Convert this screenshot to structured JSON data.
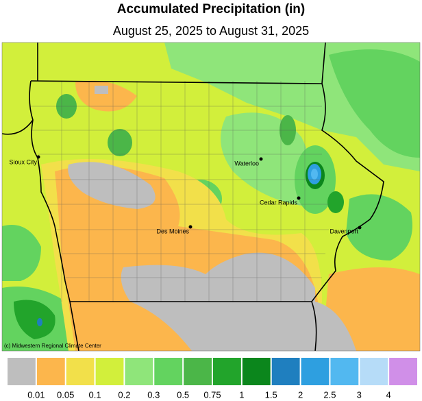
{
  "header": {
    "title": "Accumulated Precipitation (in)",
    "subtitle": "August 25, 2025 to August 31, 2025"
  },
  "map": {
    "cities": [
      "Sioux City",
      "Waterloo",
      "Cedar Rapids",
      "Des Moines",
      "Davenport"
    ],
    "credit": "(c) Midwestern Regional Climate Center"
  },
  "legend": {
    "colors": [
      "#bebebe",
      "#fcb64c",
      "#f2e04a",
      "#d2ef3b",
      "#8fe57a",
      "#63d35f",
      "#4bb648",
      "#22a42b",
      "#0b861c",
      "#1f7fbf",
      "#2e9fe0",
      "#52b8f0",
      "#b6dcf8",
      "#d08fe8"
    ],
    "labels": [
      "0.01",
      "0.05",
      "0.1",
      "0.2",
      "0.3",
      "0.5",
      "0.75",
      "1",
      "1.5",
      "2",
      "2.5",
      "3",
      "4"
    ]
  }
}
